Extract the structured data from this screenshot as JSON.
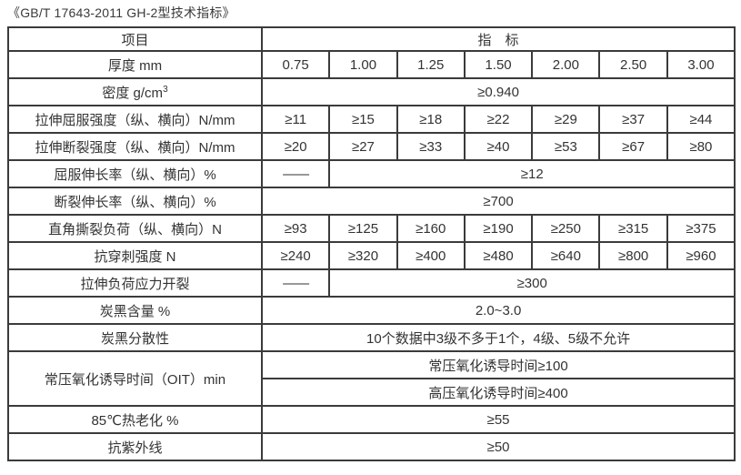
{
  "page_title": "《GB/T 17643-2011 GH-2型技术指标》",
  "colors": {
    "background": "#ffffff",
    "border": "#3b3b3b",
    "text": "#333333"
  },
  "header": {
    "item": "项目",
    "indicator": "指　标"
  },
  "rows": [
    {
      "label": "厚度 mm",
      "cells": [
        "0.75",
        "1.00",
        "1.25",
        "1.50",
        "2.00",
        "2.50",
        "3.00"
      ]
    },
    {
      "label": "密度 g/cm",
      "label_sup": "3",
      "value": "≥0.940"
    },
    {
      "label": "拉伸屈服强度（纵、横向）N/mm",
      "cells": [
        "≥11",
        "≥15",
        "≥18",
        "≥22",
        "≥29",
        "≥37",
        "≥44"
      ]
    },
    {
      "label": "拉伸断裂强度（纵、横向）N/mm",
      "cells": [
        "≥20",
        "≥27",
        "≥33",
        "≥40",
        "≥53",
        "≥67",
        "≥80"
      ]
    },
    {
      "label": "屈服伸长率（纵、横向）%",
      "dash": "——",
      "value": "≥12"
    },
    {
      "label": "断裂伸长率（纵、横向）%",
      "value": "≥700"
    },
    {
      "label": "直角撕裂负荷（纵、横向）N",
      "cells": [
        "≥93",
        "≥125",
        "≥160",
        "≥190",
        "≥250",
        "≥315",
        "≥375"
      ]
    },
    {
      "label": "抗穿刺强度 N",
      "cells": [
        "≥240",
        "≥320",
        "≥400",
        "≥480",
        "≥640",
        "≥800",
        "≥960"
      ]
    },
    {
      "label": "拉伸负荷应力开裂",
      "dash": "——",
      "value": "≥300"
    },
    {
      "label": "炭黑含量 %",
      "value": "2.0~3.0"
    },
    {
      "label": "炭黑分散性",
      "value": "10个数据中3级不多于1个，4级、5级不允许"
    },
    {
      "label": "常压氧化诱导时间（OIT）min",
      "sub_values": [
        "常压氧化诱导时间≥100",
        "高压氧化诱导时间≥400"
      ]
    },
    {
      "label": "85℃热老化 %",
      "value": "≥55"
    },
    {
      "label": "抗紫外线",
      "value": "≥50"
    }
  ]
}
